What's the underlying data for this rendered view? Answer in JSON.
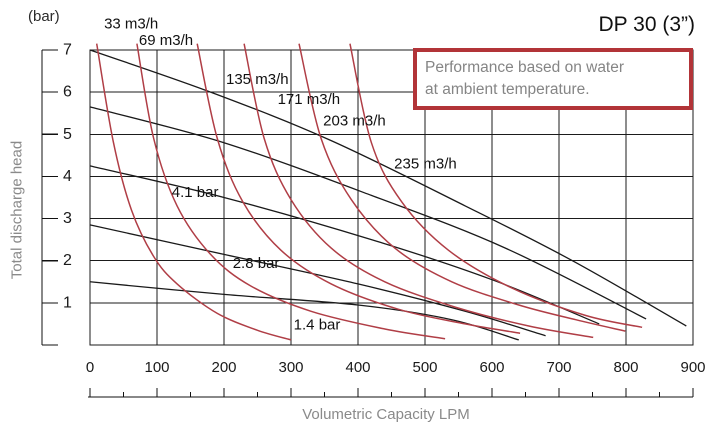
{
  "title": "DP 30 (3”)",
  "note": {
    "line1": "Performance based on water",
    "line2": "at ambient temperature."
  },
  "colors": {
    "note_border_red": "#b23438",
    "curve_red": "#b03e46",
    "curve_black": "#1a1a1a",
    "grid": "#1b1b1b",
    "axis_dark_text": "#1a1a1a",
    "axis_gray_text": "#8a8a8a",
    "background": "#ffffff"
  },
  "chart_data": {
    "type": "line",
    "title": "DP 30 (3”)",
    "xlabel": "Volumetric Capacity LPM",
    "ylabel": "Total discharge head",
    "y_unit_label": "(bar)",
    "xlim": [
      0,
      900
    ],
    "ylim": [
      0,
      7
    ],
    "grid": true,
    "x_ticks": [
      0,
      100,
      200,
      300,
      400,
      500,
      600,
      700,
      800,
      900
    ],
    "x_minor_tick_step": 50,
    "y_ticks": [
      1,
      2,
      3,
      4,
      5,
      6,
      7
    ],
    "legend_position": "none",
    "air_pressure_curves": [
      {
        "label": "",
        "label_at": null,
        "points": [
          [
            0,
            7.0
          ],
          [
            180,
            6.0
          ],
          [
            360,
            4.85
          ],
          [
            560,
            3.3
          ],
          [
            720,
            2.0
          ],
          [
            890,
            0.45
          ]
        ]
      },
      {
        "label": "",
        "label_at": null,
        "points": [
          [
            0,
            5.65
          ],
          [
            200,
            4.8
          ],
          [
            420,
            3.55
          ],
          [
            620,
            2.3
          ],
          [
            830,
            0.62
          ]
        ]
      },
      {
        "label": "4.1 bar",
        "label_at": [
          122,
          3.62
        ],
        "points": [
          [
            0,
            4.25
          ],
          [
            200,
            3.5
          ],
          [
            420,
            2.5
          ],
          [
            600,
            1.55
          ],
          [
            760,
            0.5
          ]
        ]
      },
      {
        "label": "2.8 bar",
        "label_at": [
          213,
          1.93
        ],
        "points": [
          [
            0,
            2.85
          ],
          [
            200,
            2.15
          ],
          [
            400,
            1.45
          ],
          [
            560,
            0.8
          ],
          [
            680,
            0.22
          ]
        ]
      },
      {
        "label": "1.4 bar",
        "label_at": [
          304,
          0.48
        ],
        "points": [
          [
            0,
            1.5
          ],
          [
            200,
            1.2
          ],
          [
            400,
            0.95
          ],
          [
            540,
            0.6
          ],
          [
            640,
            0.12
          ]
        ]
      }
    ],
    "air_consumption_curves": [
      {
        "label": "33 m3/h",
        "label_at": [
          21,
          7.62
        ],
        "points": [
          [
            10,
            7.15
          ],
          [
            35,
            4.8
          ],
          [
            62,
            3.2
          ],
          [
            95,
            2.1
          ],
          [
            130,
            1.45
          ],
          [
            190,
            0.75
          ],
          [
            250,
            0.35
          ],
          [
            300,
            0.12
          ]
        ]
      },
      {
        "label": "69 m3/h",
        "label_at": [
          73,
          7.22
        ],
        "points": [
          [
            70,
            7.15
          ],
          [
            95,
            4.9
          ],
          [
            130,
            3.3
          ],
          [
            180,
            2.15
          ],
          [
            240,
            1.4
          ],
          [
            330,
            0.8
          ],
          [
            440,
            0.38
          ],
          [
            530,
            0.15
          ]
        ]
      },
      {
        "label": "135 m3/h",
        "label_at": [
          203,
          6.3
        ],
        "points": [
          [
            160,
            7.15
          ],
          [
            190,
            4.9
          ],
          [
            228,
            3.4
          ],
          [
            285,
            2.25
          ],
          [
            360,
            1.45
          ],
          [
            460,
            0.85
          ],
          [
            560,
            0.5
          ],
          [
            642,
            0.28
          ]
        ]
      },
      {
        "label": "171 m3/h",
        "label_at": [
          280,
          5.82
        ],
        "points": [
          [
            230,
            7.15
          ],
          [
            260,
            4.9
          ],
          [
            300,
            3.45
          ],
          [
            360,
            2.3
          ],
          [
            440,
            1.5
          ],
          [
            545,
            0.9
          ],
          [
            655,
            0.45
          ],
          [
            751,
            0.18
          ]
        ]
      },
      {
        "label": "203 m3/h",
        "label_at": [
          348,
          5.32
        ],
        "points": [
          [
            312,
            7.15
          ],
          [
            345,
            4.9
          ],
          [
            390,
            3.45
          ],
          [
            455,
            2.3
          ],
          [
            540,
            1.5
          ],
          [
            640,
            0.95
          ],
          [
            725,
            0.6
          ],
          [
            799,
            0.33
          ]
        ]
      },
      {
        "label": "235 m3/h",
        "label_at": [
          454,
          4.3
        ],
        "points": [
          [
            388,
            7.15
          ],
          [
            420,
            4.8
          ],
          [
            465,
            3.4
          ],
          [
            535,
            2.25
          ],
          [
            630,
            1.35
          ],
          [
            740,
            0.7
          ],
          [
            824,
            0.42
          ]
        ]
      }
    ]
  }
}
